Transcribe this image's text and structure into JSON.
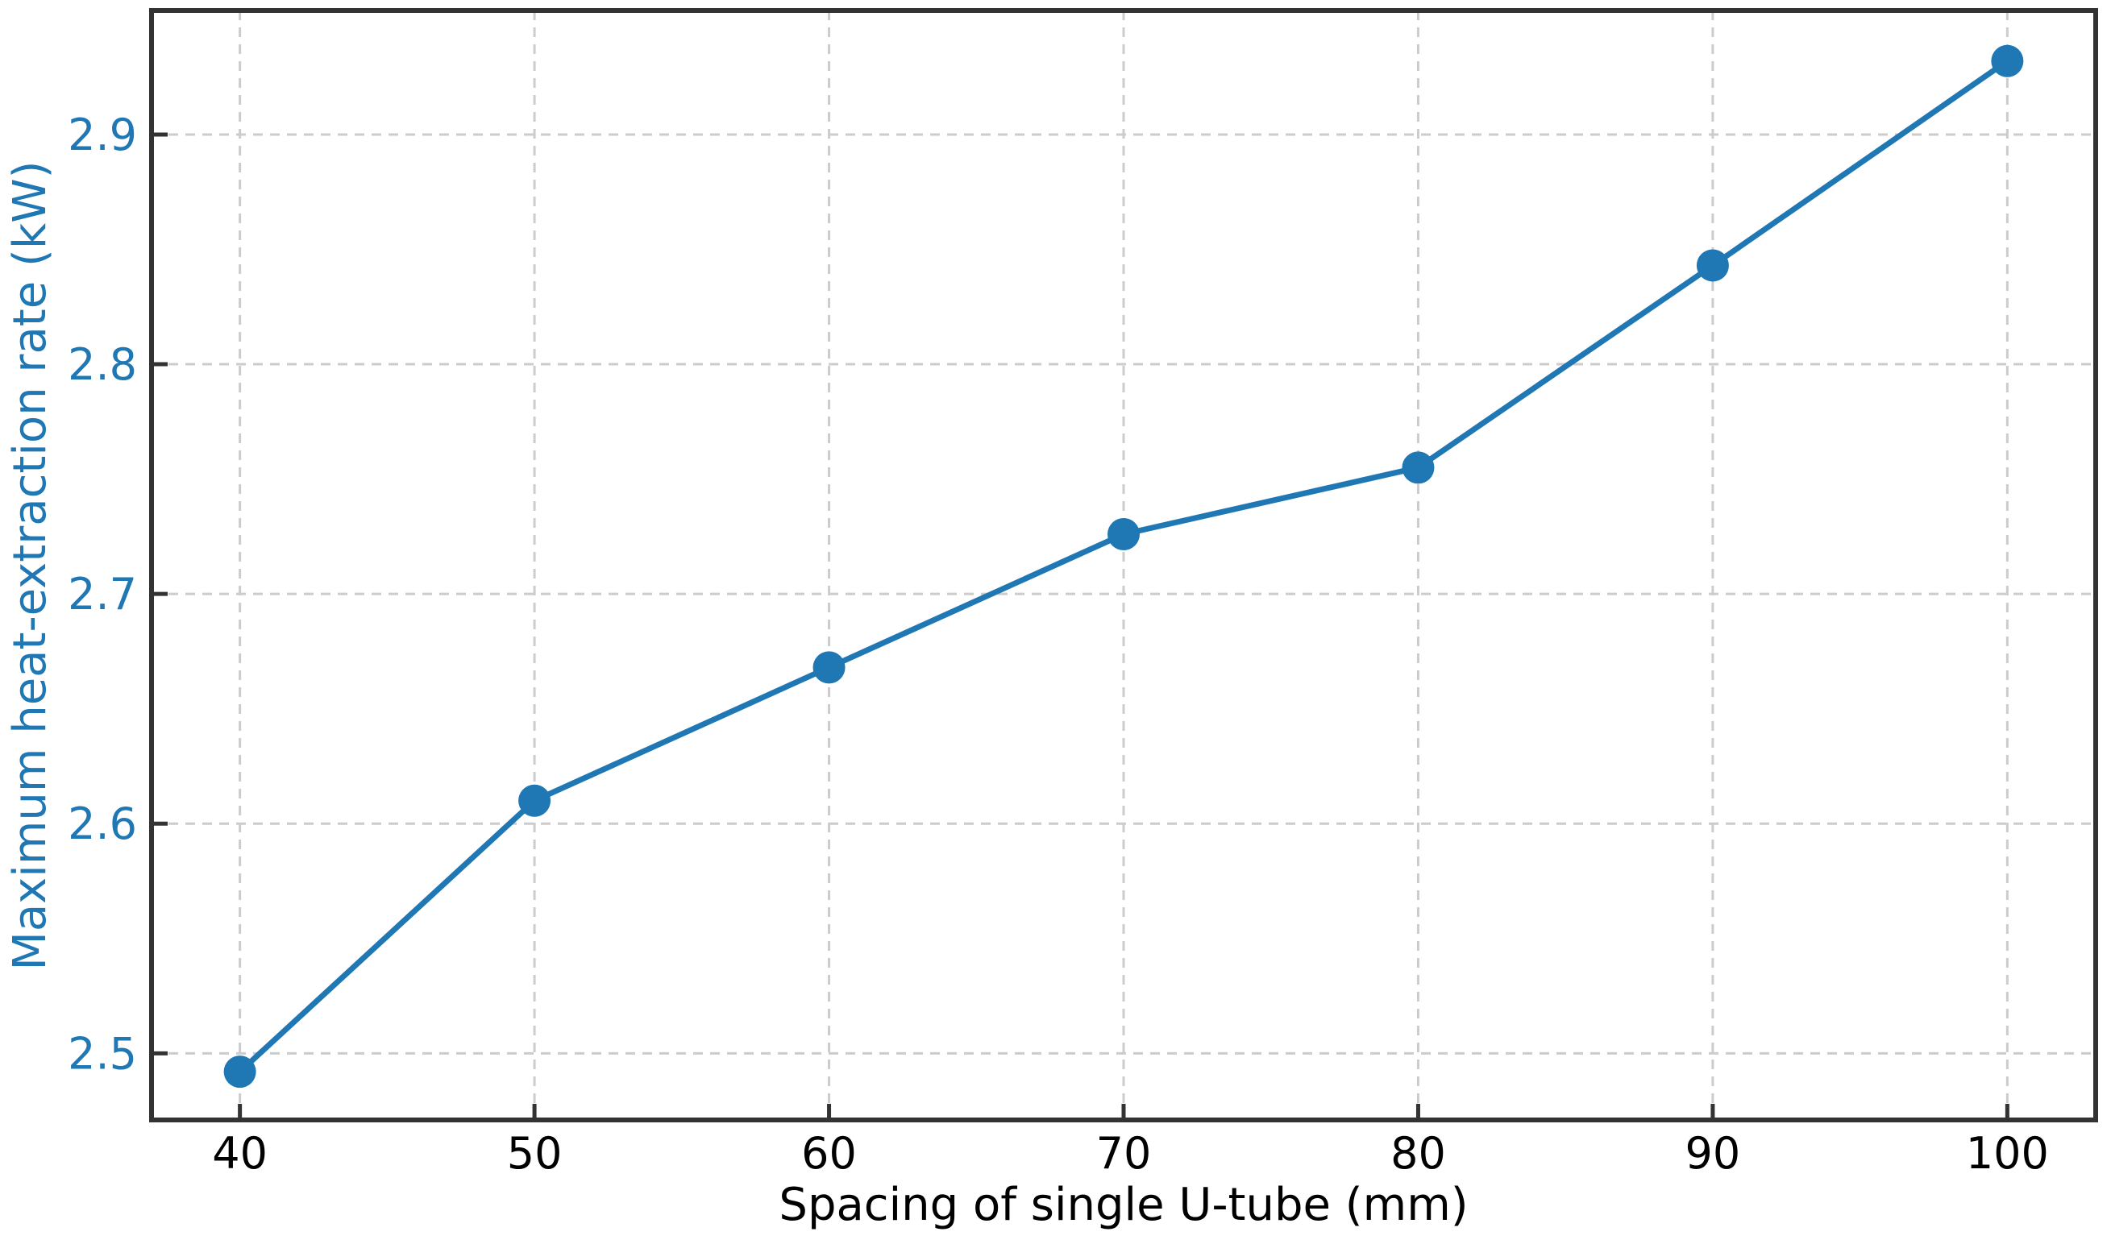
{
  "chart_data": {
    "type": "line",
    "title": "",
    "xlabel": "Spacing of single U-tube (mm)",
    "ylabel": "Maximum heat-extraction rate (kW)",
    "x": [
      40,
      50,
      60,
      70,
      80,
      90,
      100
    ],
    "y": [
      2.492,
      2.61,
      2.668,
      2.726,
      2.755,
      2.843,
      2.932
    ],
    "xticks": [
      40,
      50,
      60,
      70,
      80,
      90,
      100
    ],
    "xtick_labels": [
      "40",
      "50",
      "60",
      "70",
      "80",
      "90",
      "100"
    ],
    "yticks": [
      2.5,
      2.6,
      2.7,
      2.8,
      2.9
    ],
    "ytick_labels": [
      "2.5",
      "2.6",
      "2.7",
      "2.8",
      "2.9"
    ],
    "xlim": [
      37,
      103
    ],
    "ylim": [
      2.471,
      2.954
    ],
    "grid": true,
    "grid_style": "dashed",
    "legend_position": "none",
    "marker": "circle"
  },
  "colors": {
    "line": "#1f77b4",
    "marker": "#1f77b4",
    "ylabel": "#1f77b4",
    "ytick_label": "#1f77b4",
    "xlabel": "#000000",
    "xtick_label": "#000000",
    "grid": "#cccccc",
    "spine": "#333333",
    "background": "#ffffff"
  }
}
